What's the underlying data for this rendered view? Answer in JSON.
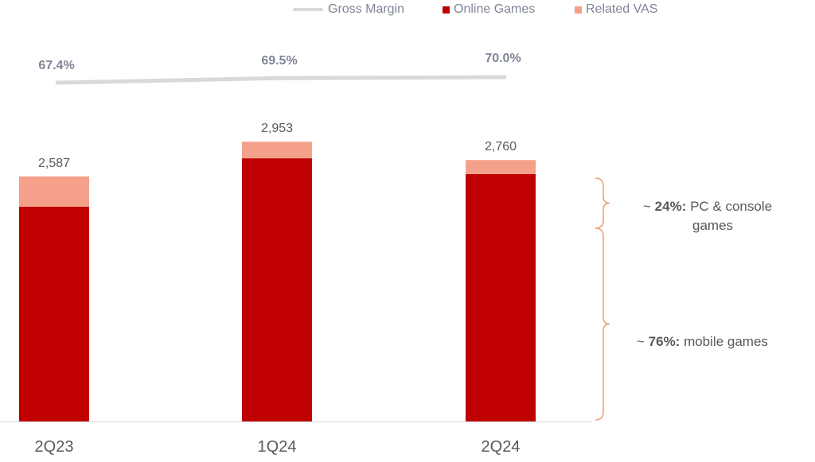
{
  "chart_data": {
    "type": "bar",
    "stacked": true,
    "categories": [
      "2Q23",
      "1Q24",
      "2Q24"
    ],
    "series": [
      {
        "name": "Online Games",
        "values": [
          2267,
          2778,
          2611
        ]
      },
      {
        "name": "Related VAS",
        "values": [
          320,
          175,
          149
        ]
      }
    ],
    "totals": [
      "2,587",
      "2,953",
      "2,760"
    ],
    "line_series": {
      "name": "Gross Margin",
      "values": [
        67.4,
        69.5,
        70.0
      ],
      "labels": [
        "67.4%",
        "69.5%",
        "70.0%"
      ]
    },
    "ylim": [
      0,
      3400
    ],
    "grid": false,
    "legend_position": "top"
  },
  "colors": {
    "online_games": "#c00000",
    "related_vas": "#f4a08a",
    "gross_margin": "#d9d9d9",
    "text": "#595959",
    "margin_label": "#7f8596",
    "brace": "#e8a070"
  },
  "legend": {
    "gross_margin": "Gross Margin",
    "online_games": "Online Games",
    "related_vas": "Related VAS"
  },
  "annotations": {
    "pc": {
      "prefix": "~ ",
      "bold": "24%:",
      "line1": " PC & console",
      "line2": "games"
    },
    "mobile": {
      "prefix": "~ ",
      "bold": "76%:",
      "text": " mobile games"
    }
  }
}
